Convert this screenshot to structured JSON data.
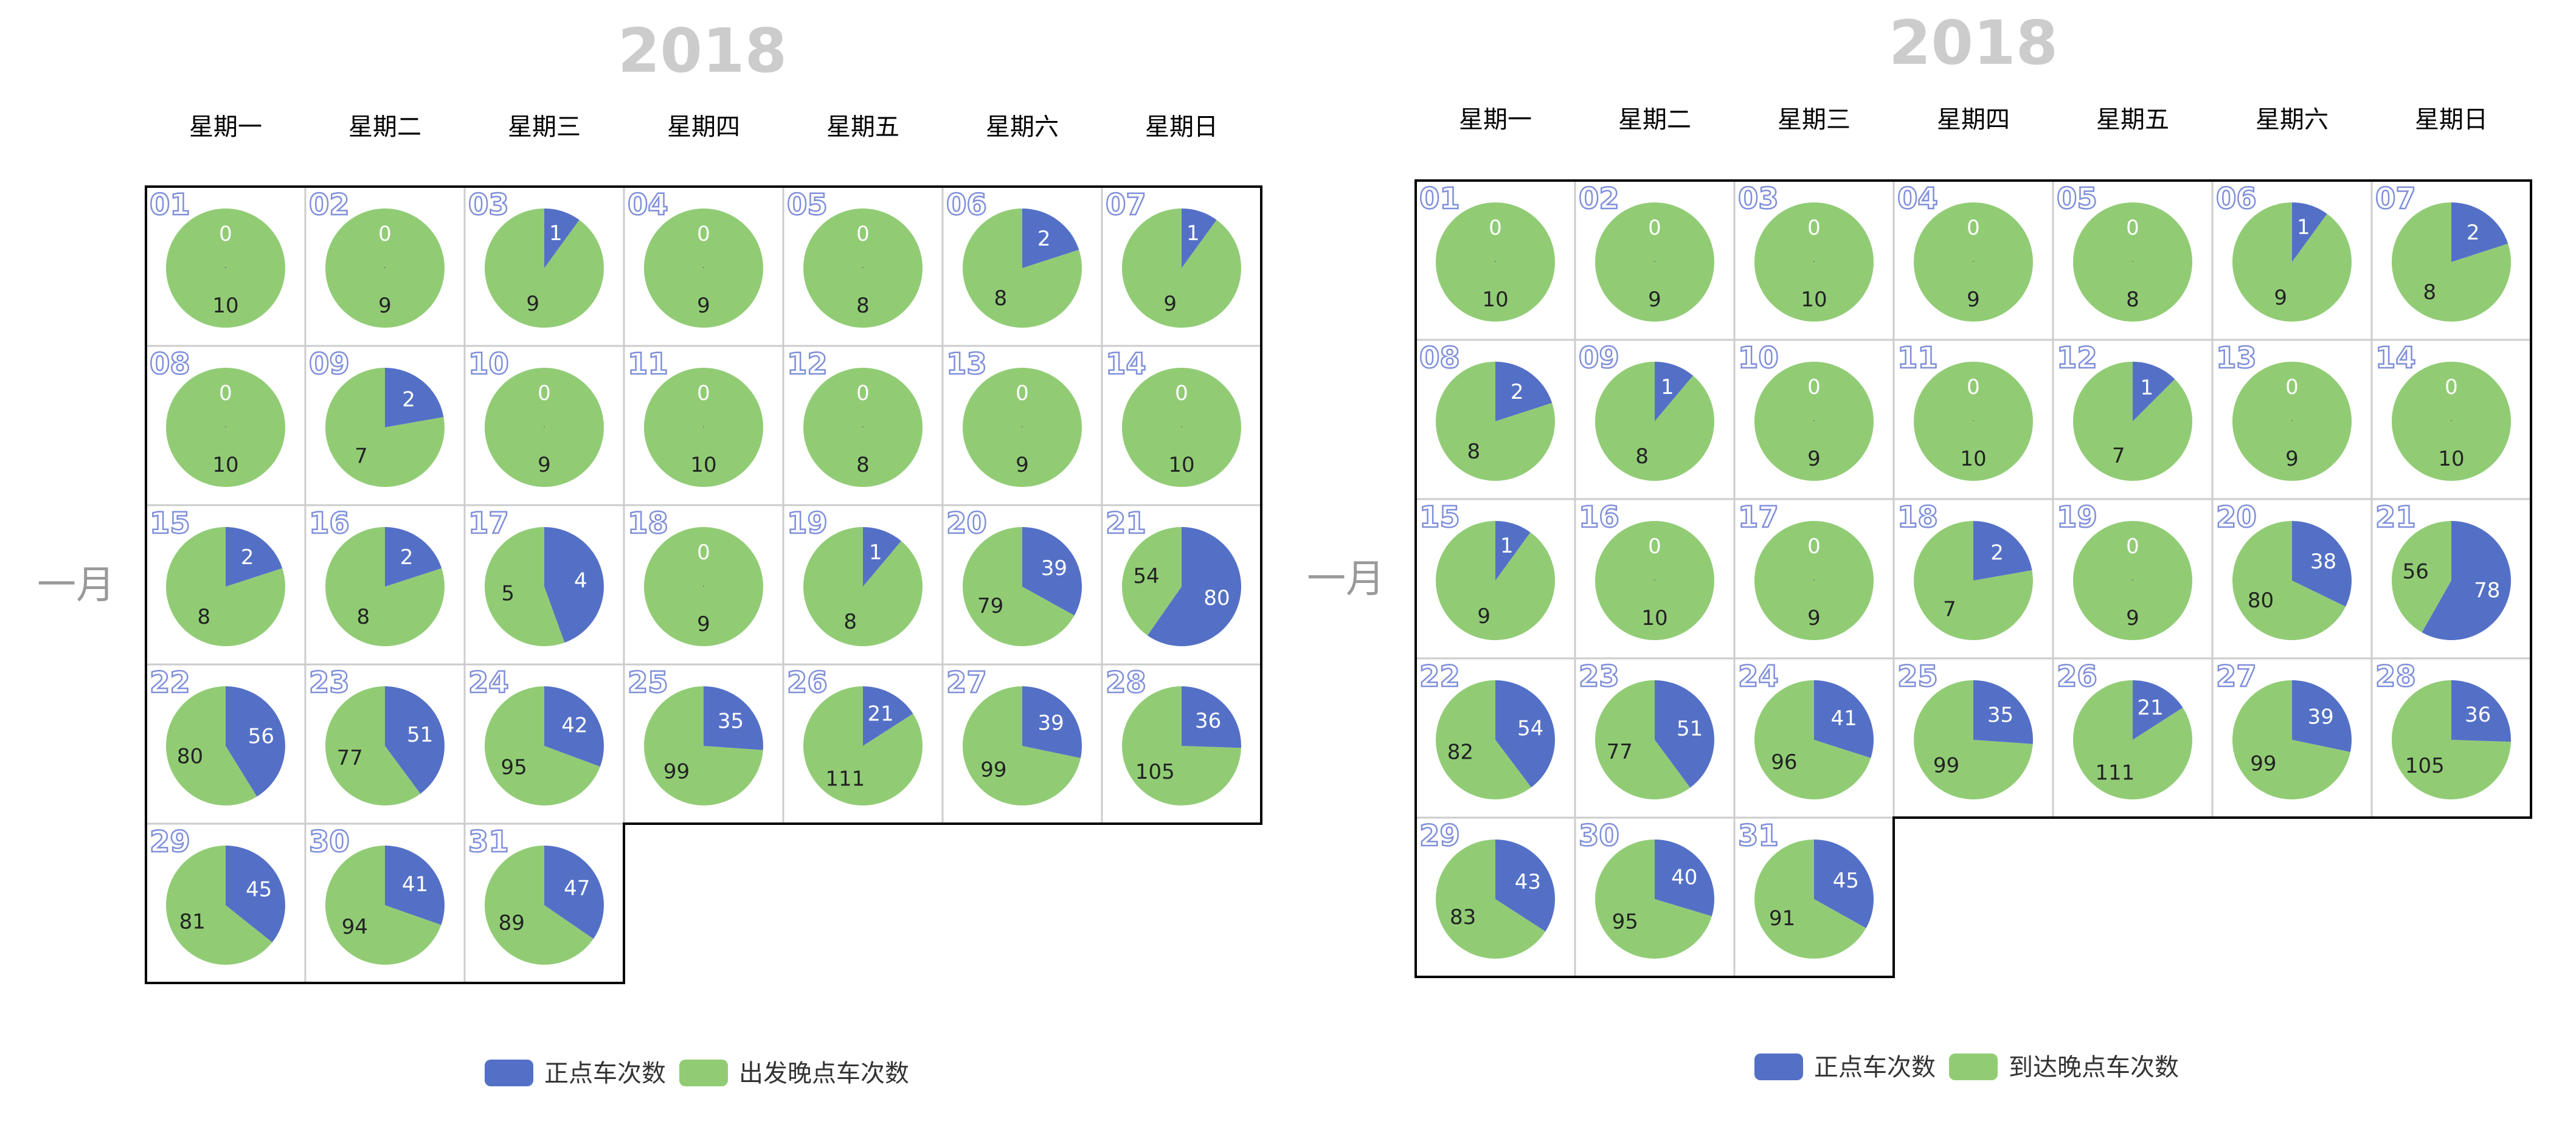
{
  "colors": {
    "on_time": "#5470c6",
    "late": "#91cc75",
    "border": "#000000",
    "cell_border": "#cccccc",
    "year": "#cccccc",
    "month": "#999999",
    "day_number": "#ffffff",
    "day_stroke": "#7f8fd9"
  },
  "chart_data": [
    {
      "type": "pie",
      "layout": "calendar",
      "year_label": "2018",
      "month_label": "一月",
      "weekdays": [
        "星期一",
        "星期二",
        "星期三",
        "星期四",
        "星期五",
        "星期六",
        "星期日"
      ],
      "start_weekday_index": 0,
      "series_names": [
        "正点车次数",
        "出发晚点车次数"
      ],
      "days": [
        {
          "day": "01",
          "values": [
            0,
            10
          ]
        },
        {
          "day": "02",
          "values": [
            0,
            9
          ]
        },
        {
          "day": "03",
          "values": [
            1,
            9
          ]
        },
        {
          "day": "04",
          "values": [
            0,
            9
          ]
        },
        {
          "day": "05",
          "values": [
            0,
            8
          ]
        },
        {
          "day": "06",
          "values": [
            2,
            8
          ]
        },
        {
          "day": "07",
          "values": [
            1,
            9
          ]
        },
        {
          "day": "08",
          "values": [
            0,
            10
          ]
        },
        {
          "day": "09",
          "values": [
            2,
            7
          ]
        },
        {
          "day": "10",
          "values": [
            0,
            9
          ]
        },
        {
          "day": "11",
          "values": [
            0,
            10
          ]
        },
        {
          "day": "12",
          "values": [
            0,
            8
          ]
        },
        {
          "day": "13",
          "values": [
            0,
            9
          ]
        },
        {
          "day": "14",
          "values": [
            0,
            10
          ]
        },
        {
          "day": "15",
          "values": [
            2,
            8
          ]
        },
        {
          "day": "16",
          "values": [
            2,
            8
          ]
        },
        {
          "day": "17",
          "values": [
            4,
            5
          ]
        },
        {
          "day": "18",
          "values": [
            0,
            9
          ]
        },
        {
          "day": "19",
          "values": [
            1,
            8
          ]
        },
        {
          "day": "20",
          "values": [
            39,
            79
          ]
        },
        {
          "day": "21",
          "values": [
            80,
            54
          ]
        },
        {
          "day": "22",
          "values": [
            56,
            80
          ]
        },
        {
          "day": "23",
          "values": [
            51,
            77
          ]
        },
        {
          "day": "24",
          "values": [
            42,
            95
          ]
        },
        {
          "day": "25",
          "values": [
            35,
            99
          ]
        },
        {
          "day": "26",
          "values": [
            21,
            111
          ]
        },
        {
          "day": "27",
          "values": [
            39,
            99
          ]
        },
        {
          "day": "28",
          "values": [
            36,
            105
          ]
        },
        {
          "day": "29",
          "values": [
            45,
            81
          ]
        },
        {
          "day": "30",
          "values": [
            41,
            94
          ]
        },
        {
          "day": "31",
          "values": [
            47,
            89
          ]
        }
      ],
      "legend": [
        "正点车次数",
        "出发晚点车次数"
      ]
    },
    {
      "type": "pie",
      "layout": "calendar",
      "year_label": "2018",
      "month_label": "一月",
      "weekdays": [
        "星期一",
        "星期二",
        "星期三",
        "星期四",
        "星期五",
        "星期六",
        "星期日"
      ],
      "start_weekday_index": 0,
      "series_names": [
        "正点车次数",
        "到达晚点车次数"
      ],
      "days": [
        {
          "day": "01",
          "values": [
            0,
            10
          ]
        },
        {
          "day": "02",
          "values": [
            0,
            9
          ]
        },
        {
          "day": "03",
          "values": [
            0,
            10
          ]
        },
        {
          "day": "04",
          "values": [
            0,
            9
          ]
        },
        {
          "day": "05",
          "values": [
            0,
            8
          ]
        },
        {
          "day": "06",
          "values": [
            1,
            9
          ]
        },
        {
          "day": "07",
          "values": [
            2,
            8
          ]
        },
        {
          "day": "08",
          "values": [
            2,
            8
          ]
        },
        {
          "day": "09",
          "values": [
            1,
            8
          ]
        },
        {
          "day": "10",
          "values": [
            0,
            9
          ]
        },
        {
          "day": "11",
          "values": [
            0,
            10
          ]
        },
        {
          "day": "12",
          "values": [
            1,
            7
          ]
        },
        {
          "day": "13",
          "values": [
            0,
            9
          ]
        },
        {
          "day": "14",
          "values": [
            0,
            10
          ]
        },
        {
          "day": "15",
          "values": [
            1,
            9
          ]
        },
        {
          "day": "16",
          "values": [
            0,
            10
          ]
        },
        {
          "day": "17",
          "values": [
            0,
            9
          ]
        },
        {
          "day": "18",
          "values": [
            2,
            7
          ]
        },
        {
          "day": "19",
          "values": [
            0,
            9
          ]
        },
        {
          "day": "20",
          "values": [
            38,
            80
          ]
        },
        {
          "day": "21",
          "values": [
            78,
            56
          ]
        },
        {
          "day": "22",
          "values": [
            54,
            82
          ]
        },
        {
          "day": "23",
          "values": [
            51,
            77
          ]
        },
        {
          "day": "24",
          "values": [
            41,
            96
          ]
        },
        {
          "day": "25",
          "values": [
            35,
            99
          ]
        },
        {
          "day": "26",
          "values": [
            21,
            111
          ]
        },
        {
          "day": "27",
          "values": [
            39,
            99
          ]
        },
        {
          "day": "28",
          "values": [
            36,
            105
          ]
        },
        {
          "day": "29",
          "values": [
            43,
            83
          ]
        },
        {
          "day": "30",
          "values": [
            40,
            95
          ]
        },
        {
          "day": "31",
          "values": [
            45,
            91
          ]
        }
      ],
      "legend": [
        "正点车次数",
        "到达晚点车次数"
      ]
    }
  ]
}
